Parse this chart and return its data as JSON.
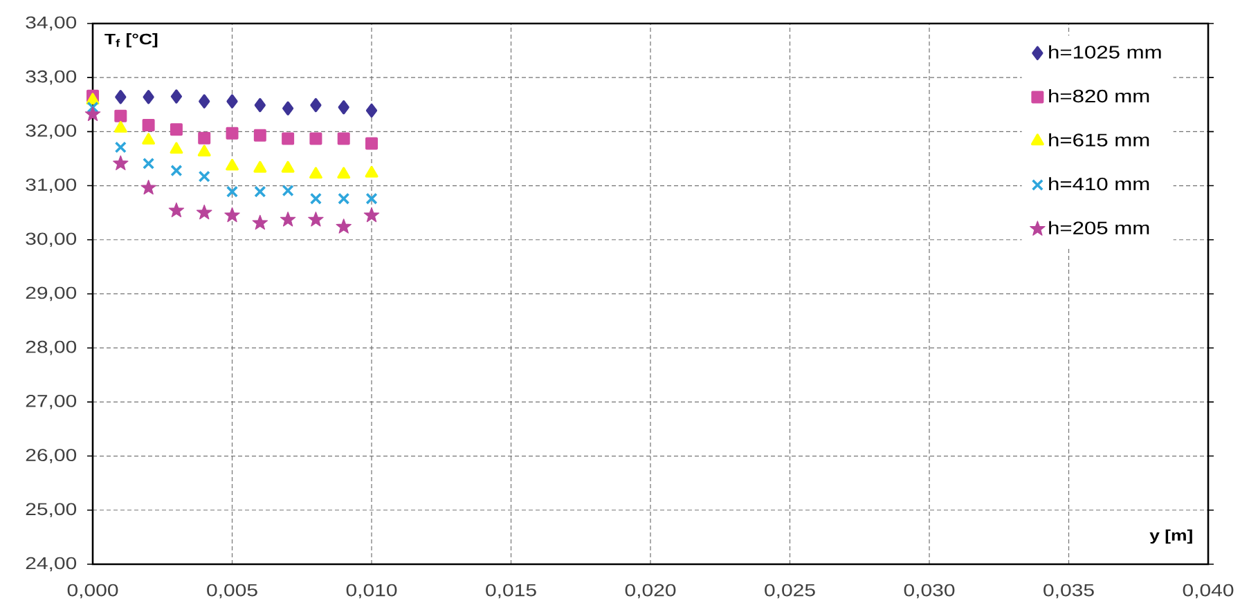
{
  "chart_data": {
    "type": "scatter",
    "xlabel": "y [m]",
    "ylabel": "T$_{f}$ [°C]",
    "x": [
      0,
      0.001,
      0.002,
      0.003,
      0.004,
      0.005,
      0.006,
      0.007,
      0.008,
      0.009,
      0.01
    ],
    "series": [
      {
        "name": "h=1025 mm",
        "color": "#3d3396",
        "marker": "diamond",
        "values": [
          null,
          32.64,
          32.64,
          32.65,
          32.56,
          32.56,
          32.49,
          32.43,
          32.49,
          32.45,
          32.39
        ]
      },
      {
        "name": "h=820 mm",
        "color": "#d04aa0",
        "marker": "square",
        "values": [
          32.66,
          32.29,
          32.12,
          32.04,
          31.88,
          31.97,
          31.93,
          31.87,
          31.87,
          31.87,
          31.78
        ]
      },
      {
        "name": "h=615 mm",
        "color": "#ffff00",
        "marker": "triangle",
        "values": [
          32.58,
          32.06,
          31.84,
          31.67,
          31.62,
          31.36,
          31.32,
          31.32,
          31.21,
          31.21,
          31.23
        ]
      },
      {
        "name": "h=410 mm",
        "color": "#2ea6dc",
        "marker": "cross",
        "values": [
          32.45,
          31.71,
          31.41,
          31.28,
          31.17,
          30.89,
          30.89,
          30.91,
          30.76,
          30.76,
          30.76
        ]
      },
      {
        "name": "h=205 mm",
        "color": "#b8449a",
        "marker": "star",
        "values": [
          32.32,
          31.41,
          30.96,
          30.54,
          30.5,
          30.45,
          30.31,
          30.37,
          30.37,
          30.24,
          30.45
        ]
      }
    ],
    "xlim": [
      0,
      0.04
    ],
    "ylim": [
      24,
      34
    ],
    "xticks": [
      {
        "value": 0,
        "label": "0,000"
      },
      {
        "value": 0.005,
        "label": "0,005"
      },
      {
        "value": 0.01,
        "label": "0,010"
      },
      {
        "value": 0.015,
        "label": "0,015"
      },
      {
        "value": 0.02,
        "label": "0,020"
      },
      {
        "value": 0.025,
        "label": "0,025"
      },
      {
        "value": 0.03,
        "label": "0,030"
      },
      {
        "value": 0.035,
        "label": "0,035"
      },
      {
        "value": 0.04,
        "label": "0,040"
      }
    ],
    "yticks": [
      {
        "value": 24,
        "label": "24,00"
      },
      {
        "value": 25,
        "label": "25,00"
      },
      {
        "value": 26,
        "label": "26,00"
      },
      {
        "value": 27,
        "label": "27,00"
      },
      {
        "value": 28,
        "label": "28,00"
      },
      {
        "value": 29,
        "label": "29,00"
      },
      {
        "value": 30,
        "label": "30,00"
      },
      {
        "value": 31,
        "label": "31,00"
      },
      {
        "value": 32,
        "label": "32,00"
      },
      {
        "value": 33,
        "label": "33,00"
      },
      {
        "value": 34,
        "label": "34,00"
      }
    ],
    "grid": true,
    "legend": "top right"
  }
}
